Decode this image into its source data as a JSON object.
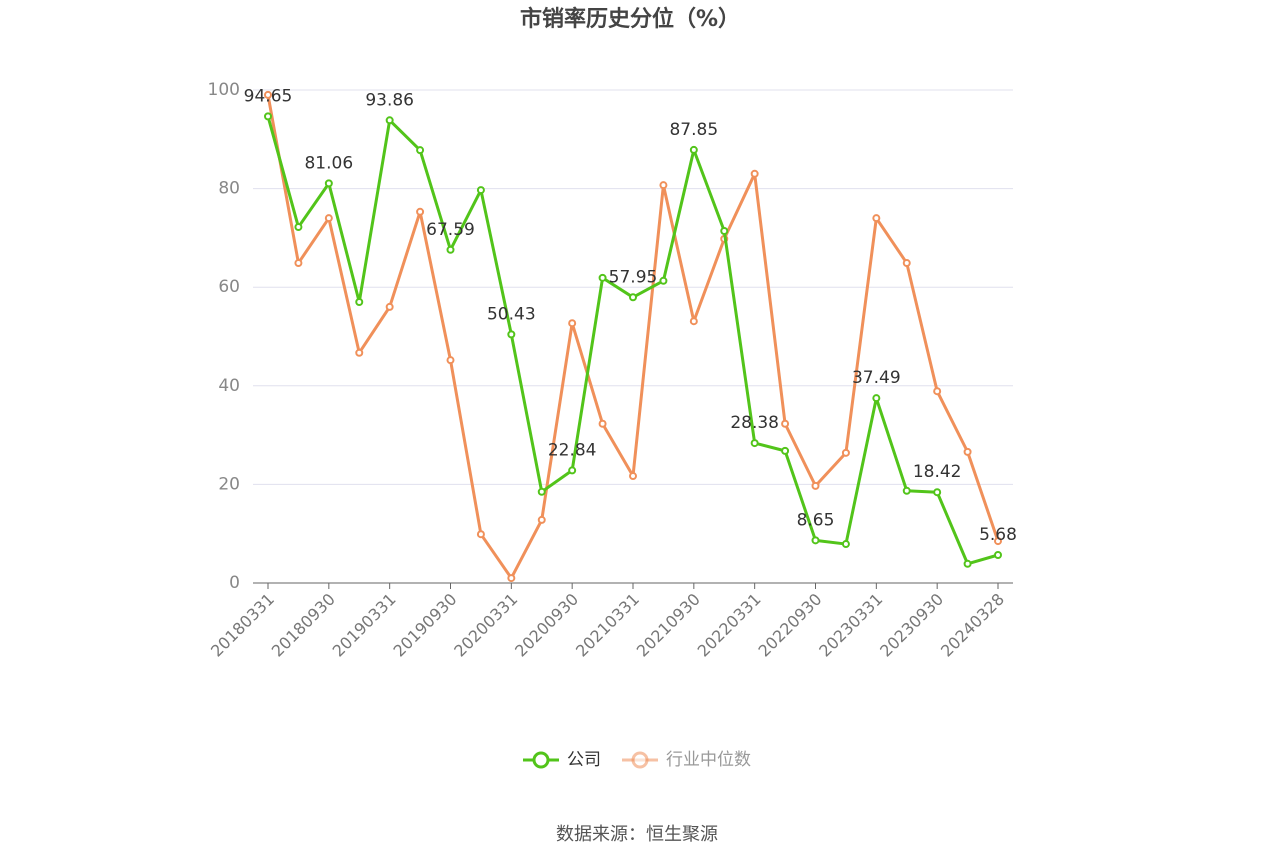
{
  "chart_data": {
    "type": "line",
    "title": "市销率历史分位（%）",
    "categories": [
      "20180331",
      null,
      "20180930",
      null,
      "20190331",
      null,
      "20190930",
      null,
      "20200331",
      null,
      "20200930",
      null,
      "20210331",
      null,
      "20210930",
      null,
      "20220331",
      null,
      "20220930",
      null,
      "20230331",
      null,
      "20230930",
      null,
      "20240328"
    ],
    "series": [
      {
        "name": "公司",
        "color": "#52c41a",
        "values": [
          94.65,
          72.2,
          81.06,
          57.0,
          93.86,
          87.8,
          67.59,
          79.7,
          50.43,
          18.5,
          22.84,
          61.9,
          57.95,
          61.3,
          87.85,
          71.4,
          28.38,
          26.8,
          8.65,
          7.9,
          37.49,
          18.7,
          18.42,
          3.9,
          5.68
        ],
        "value_labels": [
          "94.65",
          null,
          "81.06",
          null,
          "93.86",
          null,
          "67.59",
          null,
          "50.43",
          null,
          "22.84",
          null,
          "57.95",
          null,
          "87.85",
          null,
          "28.38",
          null,
          "8.65",
          null,
          "37.49",
          null,
          "18.42",
          null,
          "5.68"
        ]
      },
      {
        "name": "行业中位数",
        "color": "#f0905a",
        "values": [
          99.0,
          64.9,
          74.0,
          46.7,
          56.0,
          75.3,
          45.2,
          9.9,
          1.0,
          12.8,
          52.7,
          32.3,
          21.7,
          80.7,
          53.1,
          69.8,
          83.0,
          32.3,
          19.7,
          26.4,
          74.0,
          64.9,
          38.9,
          26.6,
          8.5
        ]
      }
    ],
    "ylim": [
      0,
      100
    ],
    "yticks": [
      0,
      20,
      40,
      60,
      80,
      100
    ],
    "grid": true,
    "source": "数据来源：恒生聚源"
  }
}
